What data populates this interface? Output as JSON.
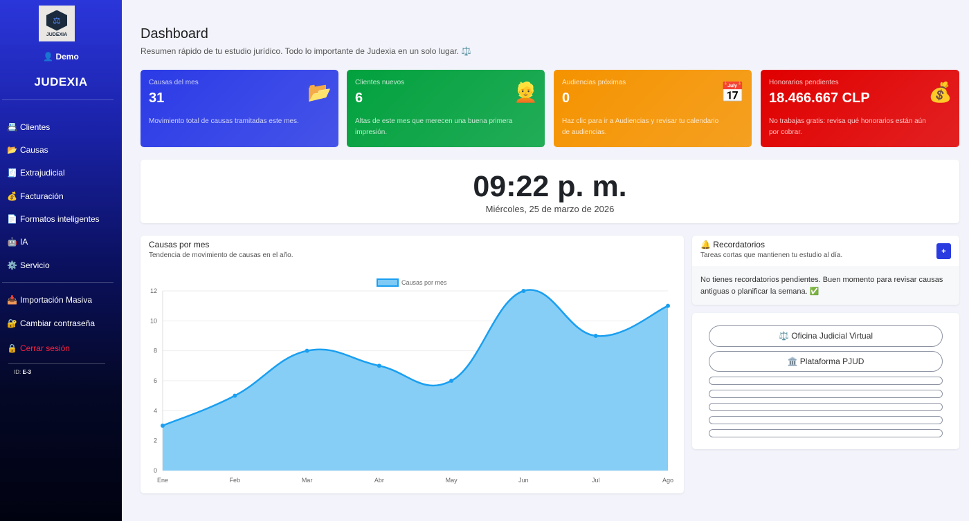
{
  "sidebar": {
    "logo_text": "JUDEXIA",
    "user": "👤 Demo",
    "brand": "JUDEXIA",
    "items": [
      {
        "icon": "📇",
        "label": "Clientes"
      },
      {
        "icon": "📂",
        "label": "Causas"
      },
      {
        "icon": "🧾",
        "label": "Extrajudicial"
      },
      {
        "icon": "💰",
        "label": "Facturación"
      },
      {
        "icon": "📄",
        "label": "Formatos inteligentes"
      },
      {
        "icon": "🤖",
        "label": "IA"
      },
      {
        "icon": "⚙️",
        "label": "Servicio"
      }
    ],
    "secondary": [
      {
        "icon": "📥",
        "label": "Importación Masiva"
      },
      {
        "icon": "🔐",
        "label": "Cambiar contraseña"
      },
      {
        "icon": "🔒",
        "label": "Cerrar sesión"
      }
    ],
    "id_label": "ID:",
    "id_value": "E-3"
  },
  "header": {
    "title": "Dashboard",
    "subtitle": "Resumen rápido de tu estudio jurídico. Todo lo importante de Judexia en un solo lugar. ⚖️"
  },
  "cards": [
    {
      "label": "Causas del mes",
      "value": "31",
      "desc": "Movimiento total de causas tramitadas este mes.",
      "icon": "📂",
      "color": "#2b3be6"
    },
    {
      "label": "Clientes nuevos",
      "value": "6",
      "desc": "Altas de este mes que merecen una buena primera impresión.",
      "icon": "👱",
      "color": "#02a13e"
    },
    {
      "label": "Audiencias próximas",
      "value": "0",
      "desc": "Haz clic para ir a Audiencias y revisar tu calendario de audiencias.",
      "icon": "📅",
      "color": "#f59300"
    },
    {
      "label": "Honorarios pendientes",
      "value": "18.466.667 CLP",
      "desc": "No trabajas gratis: revisa qué honorarios están aún por cobrar.",
      "icon": "💰",
      "color": "#e00000"
    }
  ],
  "clock": {
    "time": "09:22 p. m.",
    "date": "Miércoles, 25 de marzo de 2026"
  },
  "chart_panel": {
    "title": "Causas por mes",
    "subtitle": "Tendencia de movimiento de causas en el año."
  },
  "chart_data": {
    "type": "area",
    "categories": [
      "Ene",
      "Feb",
      "Mar",
      "Abr",
      "May",
      "Jun",
      "Jul",
      "Ago"
    ],
    "series": [
      {
        "name": "Causas por mes",
        "values": [
          3,
          5,
          8,
          7,
          6,
          12,
          9,
          11
        ],
        "color": "#1a9ff0",
        "fill": "#7fcbf5"
      }
    ],
    "ylim": [
      0,
      12
    ],
    "yticks": [
      0,
      2,
      4,
      6,
      8,
      10,
      12
    ],
    "legend": "top-center",
    "grid": true
  },
  "reminders": {
    "title": "🔔 Recordatorios",
    "subtitle": "Tareas cortas que mantienen tu estudio al día.",
    "add_label": "+",
    "empty": "No tienes recordatorios pendientes. Buen momento para revisar causas antiguas o planificar la semana. ✅"
  },
  "links": [
    {
      "label": "⚖️ Oficina Judicial Virtual"
    },
    {
      "label": "🏛️ Plataforma PJUD"
    }
  ]
}
